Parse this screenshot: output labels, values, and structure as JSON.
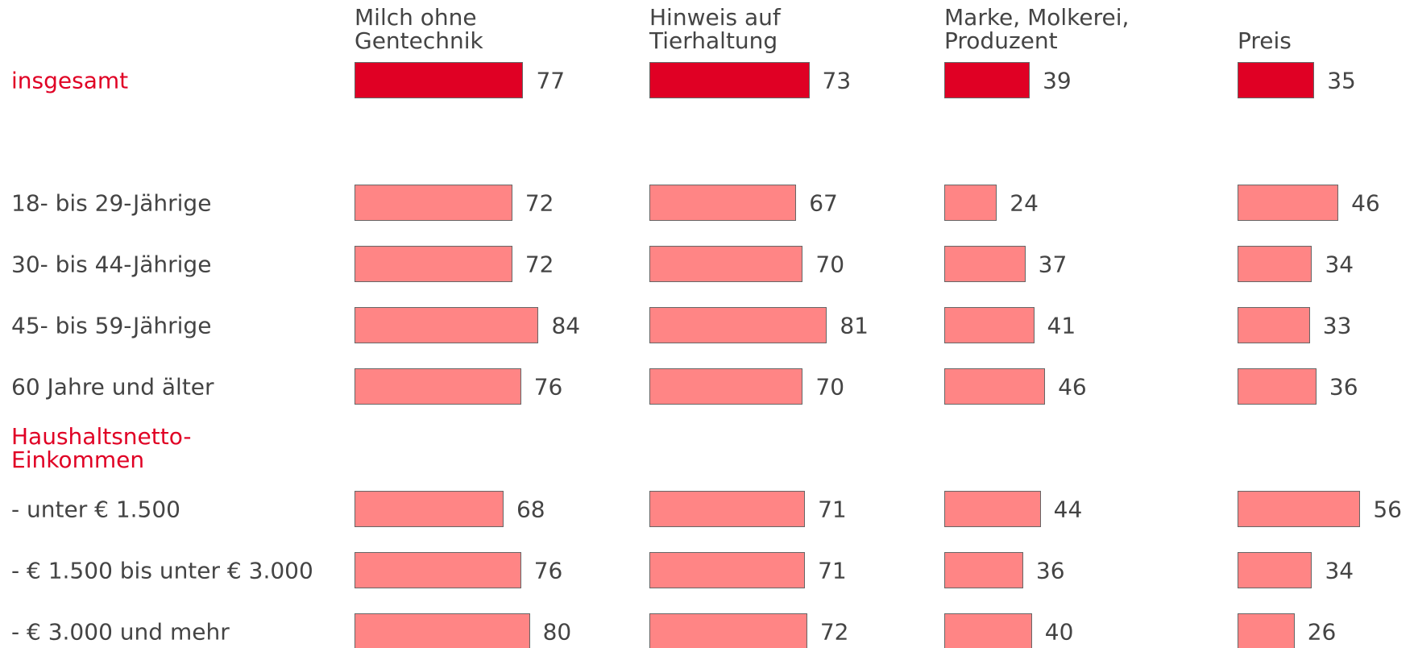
{
  "chart_data": {
    "type": "bar",
    "orientation": "horizontal",
    "categories": [
      "insgesamt",
      "18- bis 29-Jährige",
      "30- bis 44-Jährige",
      "45- bis 59-Jährige",
      "60 Jahre und älter",
      "Haushaltsnetto-\nEinkommen",
      "- unter € 1.500",
      "- € 1.500 bis unter € 3.000",
      "- € 3.000 und mehr"
    ],
    "category_colors": [
      "#e00024",
      "#444444",
      "#444444",
      "#444444",
      "#444444",
      "#e00024",
      "#444444",
      "#444444",
      "#444444"
    ],
    "bar_colors": [
      "#e00024",
      "#ff8585",
      "#ff8585",
      "#ff8585",
      "#ff8585",
      null,
      "#ff8585",
      "#ff8585",
      "#ff8585"
    ],
    "series": [
      {
        "name": "Milch ohne\nGentechnik",
        "values": [
          77,
          72,
          72,
          84,
          76,
          null,
          68,
          76,
          80
        ]
      },
      {
        "name": "Hinweis auf\nTierhaltung",
        "values": [
          73,
          67,
          70,
          81,
          70,
          null,
          71,
          71,
          72
        ]
      },
      {
        "name": "Marke, Molkerei,\nProduzent",
        "values": [
          39,
          24,
          37,
          41,
          46,
          null,
          44,
          36,
          40
        ]
      },
      {
        "name": "Preis",
        "values": [
          35,
          46,
          34,
          33,
          36,
          null,
          56,
          34,
          26
        ]
      }
    ]
  }
}
